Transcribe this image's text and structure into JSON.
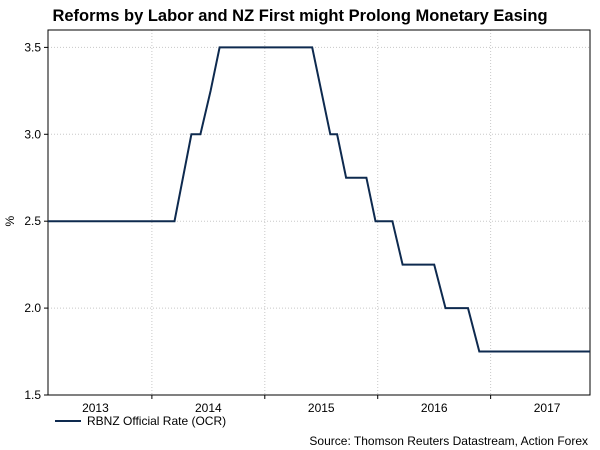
{
  "chart_data": {
    "type": "line",
    "title": "Reforms by Labor and NZ First might Prolong Monetary Easing",
    "ylabel": "%",
    "ylim": [
      1.5,
      3.6
    ],
    "yticks": [
      "1.5",
      "2.0",
      "2.5",
      "3.0",
      "3.5"
    ],
    "xlim": [
      2012.58,
      2017.38
    ],
    "xticks": [
      {
        "label": "2013",
        "value": 2013.0
      },
      {
        "label": "2014",
        "value": 2014.0
      },
      {
        "label": "2015",
        "value": 2015.0
      },
      {
        "label": "2016",
        "value": 2016.0
      },
      {
        "label": "2017",
        "value": 2017.0
      }
    ],
    "year_boundaries": [
      2013.5,
      2014.5,
      2015.5,
      2016.5
    ],
    "grid": true,
    "legend_position": "bottom-left",
    "series": [
      {
        "name": "RBNZ Official Rate (OCR)",
        "color": "#0e2a4f",
        "x": [
          2012.58,
          2013.7,
          2013.85,
          2013.93,
          2014.02,
          2014.1,
          2014.92,
          2015.08,
          2015.14,
          2015.22,
          2015.3,
          2015.4,
          2015.48,
          2015.63,
          2015.72,
          2016.0,
          2016.1,
          2016.3,
          2016.4,
          2016.5,
          2017.38
        ],
        "y": [
          2.5,
          2.5,
          3.0,
          3.0,
          3.25,
          3.5,
          3.5,
          3.0,
          3.0,
          2.75,
          2.75,
          2.75,
          2.5,
          2.5,
          2.25,
          2.25,
          2.0,
          2.0,
          1.75,
          1.75,
          1.75
        ]
      }
    ],
    "source": "Source: Thomson Reuters Datastream, Action Forex"
  }
}
